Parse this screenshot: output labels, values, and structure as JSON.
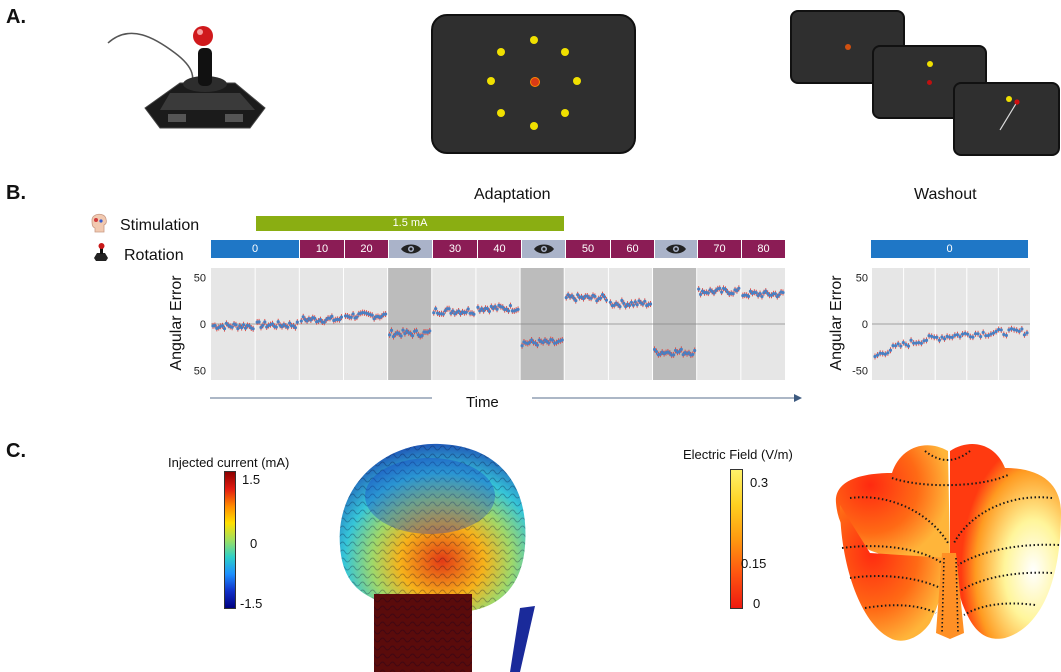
{
  "panels": {
    "a": "A.",
    "b": "B.",
    "c": "C."
  },
  "colors": {
    "stim_green": "#8aae12",
    "rot_blue": "#1f77c6",
    "rot_magenta": "#8b1c55",
    "nofeedback_gray": "#aab3c9",
    "plot_bg": "#e6e6e6",
    "nofeedback_bg": "#bcbcbc",
    "series_blue": "#4a7fc1",
    "series_red": "#e0403a"
  },
  "panel_a": {
    "joystick_icon": "joystick-icon",
    "target_screen_icon": "target-screen-icon",
    "trial_sequence_icon": "trial-sequence-icon"
  },
  "panel_b": {
    "adaptation_title": "Adaptation",
    "washout_title": "Washout",
    "stimulation_label": "Stimulation",
    "rotation_label": "Rotation",
    "stimulation_bar_label": "1.5 mA",
    "rotation_segments": [
      "0",
      "10",
      "20",
      "eye",
      "30",
      "40",
      "eye",
      "50",
      "60",
      "eye",
      "70",
      "80"
    ],
    "washout_rotation_label": "0",
    "y_axis_title": "Angular Error",
    "y_ticks": [
      "50",
      "0",
      "50"
    ],
    "washout_y_ticks": [
      "50",
      "0",
      "-50"
    ],
    "x_axis_title": "Time",
    "head_icon": "head-icon",
    "joystick_small_icon": "joystick-icon",
    "eye_icon": "eye-icon"
  },
  "panel_c": {
    "current_colorbar_title": "Injected current (mA)",
    "current_ticks": [
      "1.5",
      "0",
      "-1.5"
    ],
    "field_colorbar_title": "Electric Field (V/m)",
    "field_ticks": [
      "0.3",
      "0.15",
      "0"
    ],
    "brain_icon": "brain-model-icon",
    "cerebellum_icon": "cerebellar-flatmap-icon"
  },
  "chart_data": {
    "type": "scatter",
    "title": "",
    "xlabel": "Time",
    "ylabel": "Angular Error",
    "ylim": [
      -60,
      60
    ],
    "adaptation_blocks": [
      {
        "rotation": "0",
        "mean": -2
      },
      {
        "rotation": "0",
        "mean": -1
      },
      {
        "rotation": "10",
        "mean": 5
      },
      {
        "rotation": "20",
        "mean": 9
      },
      {
        "rotation": "no-feedback",
        "mean": -10
      },
      {
        "rotation": "30",
        "mean": 14
      },
      {
        "rotation": "40",
        "mean": 17
      },
      {
        "rotation": "no-feedback",
        "mean": -20
      },
      {
        "rotation": "50",
        "mean": 28
      },
      {
        "rotation": "60",
        "mean": 22
      },
      {
        "rotation": "no-feedback",
        "mean": -30
      },
      {
        "rotation": "70",
        "mean": 35
      },
      {
        "rotation": "80",
        "mean": 32
      }
    ],
    "washout": {
      "rotation": "0",
      "start": -35,
      "end": -7
    }
  }
}
